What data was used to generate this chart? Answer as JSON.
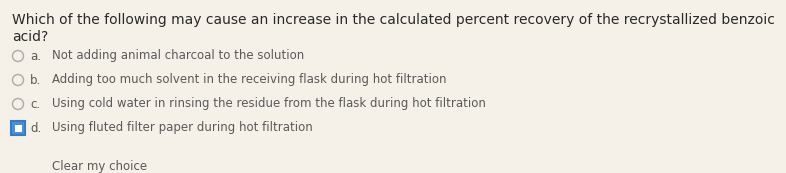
{
  "background_color": "#f5f0e8",
  "question_line1": "Which of the following may cause an increase in the calculated percent recovery of the recrystallized benzoic",
  "question_line2": "acid?",
  "question_fontsize": 10.0,
  "question_color": "#2a2a2a",
  "options": [
    {
      "label": "a.",
      "text": "Not adding animal charcoal to the solution",
      "selected": false
    },
    {
      "label": "b.",
      "text": "Adding too much solvent in the receiving flask during hot filtration",
      "selected": false
    },
    {
      "label": "c.",
      "text": "Using cold water in rinsing the residue from the flask during hot filtration",
      "selected": false
    },
    {
      "label": "d.",
      "text": "Using fluted filter paper during hot filtration",
      "selected": true
    }
  ],
  "clear_text": "Clear my choice",
  "option_fontsize": 8.5,
  "clear_fontsize": 8.5,
  "text_color": "#5a5a5a",
  "question_color2": "#3a3a3a",
  "radio_edge_color": "#aaaaaa",
  "selected_border_color": "#3a7abf",
  "selected_fill_color": "#4a90d9",
  "selected_inner_color": "#ffffff"
}
